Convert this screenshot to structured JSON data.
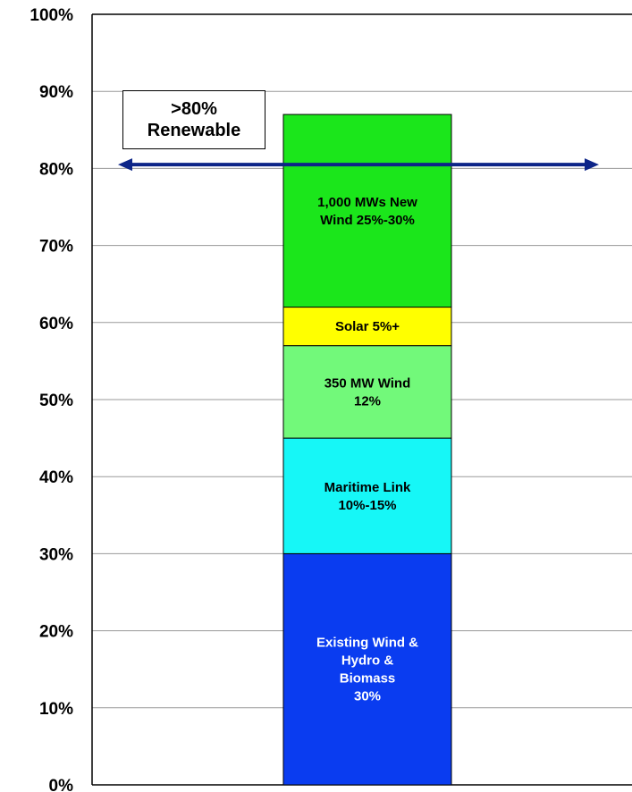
{
  "chart_data": {
    "type": "bar",
    "stacked": true,
    "ylim": [
      0,
      100
    ],
    "y_ticks": [
      "0%",
      "10%",
      "20%",
      "30%",
      "40%",
      "50%",
      "60%",
      "70%",
      "80%",
      "90%",
      "100%"
    ],
    "grid": true,
    "segments": [
      {
        "label_lines": [
          "Existing Wind &",
          "Hydro &",
          "Biomass",
          "30%"
        ],
        "start": 0,
        "value": 30,
        "color": "#0a3cf0",
        "text_color": "#ffffff"
      },
      {
        "label_lines": [
          "Maritime Link",
          "10%-15%"
        ],
        "start": 30,
        "value": 15,
        "color": "#16f7f7",
        "text_color": "#000000"
      },
      {
        "label_lines": [
          "350 MW Wind",
          "12%"
        ],
        "start": 45,
        "value": 12,
        "color": "#72f97a",
        "text_color": "#000000"
      },
      {
        "label_lines": [
          "Solar 5%+"
        ],
        "start": 57,
        "value": 5,
        "color": "#ffff00",
        "text_color": "#000000"
      },
      {
        "label_lines": [
          "1,000 MWs New",
          "Wind 25%-30%"
        ],
        "start": 62,
        "value": 25,
        "color": "#1be61b",
        "text_color": "#000000"
      }
    ],
    "reference_arrow": {
      "value": 80.5,
      "color": "#0d2588"
    },
    "annotation": {
      "lines": [
        ">80%",
        "Renewable"
      ]
    }
  }
}
